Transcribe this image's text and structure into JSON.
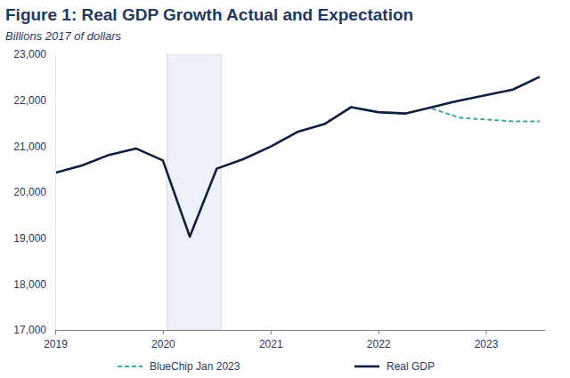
{
  "chart_data": {
    "type": "line",
    "title": "Figure 1: Real GDP Growth Actual and Expectation",
    "subtitle": "Billions 2017 of dollars",
    "x": [
      2019,
      2019.25,
      2019.5,
      2019.75,
      2020,
      2020.25,
      2020.5,
      2020.75,
      2021,
      2021.25,
      2021.5,
      2021.75,
      2022,
      2022.25,
      2022.5,
      2022.75,
      2023,
      2023.25,
      2023.5
    ],
    "series": [
      {
        "name": "BlueChip Jan 2023",
        "color": "#3aa6a0",
        "line_style": "dashed",
        "values": [
          null,
          null,
          null,
          null,
          null,
          null,
          null,
          null,
          null,
          null,
          null,
          null,
          null,
          null,
          21820,
          21620,
          21580,
          21540,
          21540
        ]
      },
      {
        "name": "Real GDP",
        "color": "#0e1e3e",
        "line_style": "solid",
        "values": [
          20420,
          20580,
          20810,
          20950,
          20690,
          19030,
          20510,
          20720,
          20990,
          21310,
          21480,
          21850,
          21740,
          21710,
          21850,
          21990,
          22110,
          22230,
          22510
        ]
      }
    ],
    "shaded_x": [
      2020.04,
      2020.54
    ],
    "xlim": [
      2019,
      2023.55
    ],
    "xticks": [
      2019,
      2020,
      2021,
      2022,
      2023
    ],
    "ylim": [
      17000,
      23000
    ],
    "yticks": [
      {
        "value": 17000,
        "label": "17,000"
      },
      {
        "value": 18000,
        "label": "18,000"
      },
      {
        "value": 19000,
        "label": "19,000"
      },
      {
        "value": 20000,
        "label": "20,000"
      },
      {
        "value": 21000,
        "label": "21,000"
      },
      {
        "value": 22000,
        "label": "22,000"
      },
      {
        "value": 23000,
        "label": "23,000"
      }
    ],
    "grid": false,
    "legend": "bottom"
  }
}
